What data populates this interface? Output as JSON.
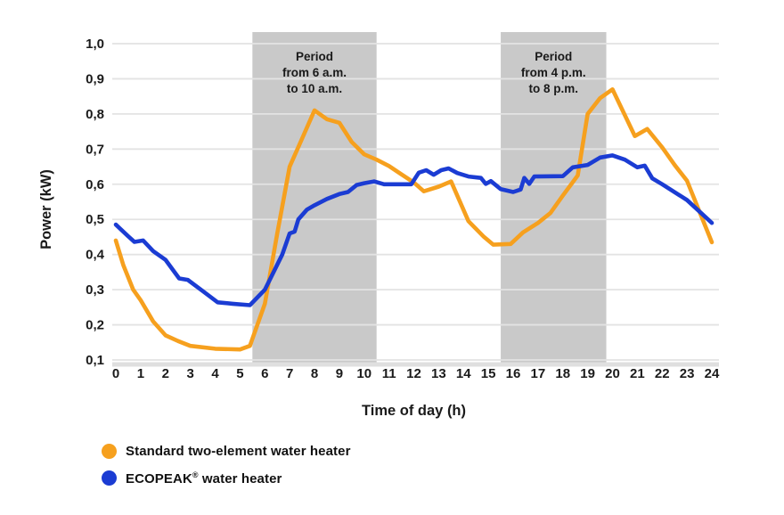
{
  "chart_data": {
    "type": "line",
    "title": "",
    "xlabel": "Time of day (h)",
    "ylabel": "Power (kW)",
    "xlim": [
      0,
      24
    ],
    "ylim": [
      0.1,
      1.0
    ],
    "grid": "horizontal",
    "decimal_separator": ",",
    "x_ticks": [
      0,
      1,
      2,
      3,
      4,
      5,
      6,
      7,
      8,
      9,
      10,
      11,
      12,
      13,
      14,
      15,
      16,
      17,
      18,
      19,
      20,
      21,
      22,
      23,
      24
    ],
    "y_ticks": [
      {
        "value": 1.0,
        "label": "1,0"
      },
      {
        "value": 0.9,
        "label": "0,9"
      },
      {
        "value": 0.8,
        "label": "0,8"
      },
      {
        "value": 0.7,
        "label": "0,7"
      },
      {
        "value": 0.6,
        "label": "0,6"
      },
      {
        "value": 0.5,
        "label": "0,5"
      },
      {
        "value": 0.4,
        "label": "0,4"
      },
      {
        "value": 0.3,
        "label": "0,3"
      },
      {
        "value": 0.2,
        "label": "0,2"
      },
      {
        "value": 0.1,
        "label": "0,1"
      }
    ],
    "bands": [
      {
        "x_start": 5.5,
        "x_end": 10.5,
        "color": "#c9c9c9",
        "label_lines": [
          "Period",
          "from 6 a.m.",
          "to 10 a.m."
        ]
      },
      {
        "x_start": 15.5,
        "x_end": 19.75,
        "color": "#c9c9c9",
        "label_lines": [
          "Period",
          "from 4 p.m.",
          "to 8 p.m."
        ]
      }
    ],
    "series": [
      {
        "name": "Standard two-element water heater",
        "color": "#F6A01E",
        "points": [
          [
            0,
            0.44
          ],
          [
            0.3,
            0.37
          ],
          [
            0.7,
            0.3
          ],
          [
            1,
            0.27
          ],
          [
            1.5,
            0.21
          ],
          [
            2,
            0.17
          ],
          [
            2.5,
            0.154
          ],
          [
            3,
            0.14
          ],
          [
            4,
            0.132
          ],
          [
            5,
            0.13
          ],
          [
            5.4,
            0.14
          ],
          [
            6,
            0.26
          ],
          [
            6.5,
            0.46
          ],
          [
            7,
            0.65
          ],
          [
            7.5,
            0.73
          ],
          [
            8,
            0.81
          ],
          [
            8.5,
            0.785
          ],
          [
            9,
            0.775
          ],
          [
            9.5,
            0.72
          ],
          [
            10,
            0.685
          ],
          [
            10.5,
            0.67
          ],
          [
            11,
            0.652
          ],
          [
            11.5,
            0.628
          ],
          [
            12,
            0.605
          ],
          [
            12.4,
            0.58
          ],
          [
            13,
            0.593
          ],
          [
            13.5,
            0.608
          ],
          [
            14.2,
            0.495
          ],
          [
            14.8,
            0.452
          ],
          [
            15.2,
            0.428
          ],
          [
            15.9,
            0.43
          ],
          [
            16.4,
            0.463
          ],
          [
            17,
            0.49
          ],
          [
            17.5,
            0.518
          ],
          [
            18,
            0.568
          ],
          [
            18.6,
            0.625
          ],
          [
            19,
            0.8
          ],
          [
            19.5,
            0.845
          ],
          [
            20,
            0.87
          ],
          [
            20.9,
            0.737
          ],
          [
            21.4,
            0.757
          ],
          [
            22,
            0.705
          ],
          [
            22.5,
            0.655
          ],
          [
            23,
            0.61
          ],
          [
            24,
            0.435
          ]
        ]
      },
      {
        "name": "ECOPEAK® water heater",
        "color": "#1B3CD3",
        "points": [
          [
            0,
            0.485
          ],
          [
            0.5,
            0.452
          ],
          [
            0.75,
            0.436
          ],
          [
            1.1,
            0.44
          ],
          [
            1.5,
            0.41
          ],
          [
            2,
            0.385
          ],
          [
            2.55,
            0.332
          ],
          [
            2.9,
            0.328
          ],
          [
            3.5,
            0.296
          ],
          [
            4.1,
            0.264
          ],
          [
            4.7,
            0.26
          ],
          [
            5.4,
            0.256
          ],
          [
            6,
            0.3
          ],
          [
            6.7,
            0.4
          ],
          [
            7,
            0.46
          ],
          [
            7.2,
            0.465
          ],
          [
            7.35,
            0.5
          ],
          [
            7.7,
            0.528
          ],
          [
            8,
            0.54
          ],
          [
            8.5,
            0.558
          ],
          [
            9,
            0.572
          ],
          [
            9.35,
            0.578
          ],
          [
            9.7,
            0.598
          ],
          [
            10,
            0.603
          ],
          [
            10.4,
            0.608
          ],
          [
            10.8,
            0.6
          ],
          [
            11.9,
            0.6
          ],
          [
            12.2,
            0.633
          ],
          [
            12.5,
            0.64
          ],
          [
            12.8,
            0.627
          ],
          [
            13.1,
            0.64
          ],
          [
            13.4,
            0.645
          ],
          [
            13.75,
            0.632
          ],
          [
            14.2,
            0.622
          ],
          [
            14.7,
            0.618
          ],
          [
            14.9,
            0.601
          ],
          [
            15.1,
            0.609
          ],
          [
            15.5,
            0.586
          ],
          [
            16,
            0.578
          ],
          [
            16.3,
            0.585
          ],
          [
            16.45,
            0.618
          ],
          [
            16.65,
            0.601
          ],
          [
            16.85,
            0.622
          ],
          [
            18,
            0.623
          ],
          [
            18.4,
            0.648
          ],
          [
            19,
            0.655
          ],
          [
            19.5,
            0.676
          ],
          [
            20,
            0.682
          ],
          [
            20.5,
            0.67
          ],
          [
            21,
            0.648
          ],
          [
            21.3,
            0.653
          ],
          [
            21.6,
            0.617
          ],
          [
            22,
            0.6
          ],
          [
            23,
            0.555
          ],
          [
            24,
            0.49
          ]
        ]
      }
    ]
  },
  "legend": {
    "items": [
      {
        "label": "Standard two-element water heater",
        "color": "#F6A01E"
      },
      {
        "label_main": "ECOPEAK",
        "label_sup": "®",
        "label_rest": " water heater",
        "color": "#1B3CD3"
      }
    ]
  },
  "style": {
    "gridline_color": "#e3e3e3",
    "baseline_color": "#dfdfdf",
    "text_color": "#1a1a1a"
  }
}
